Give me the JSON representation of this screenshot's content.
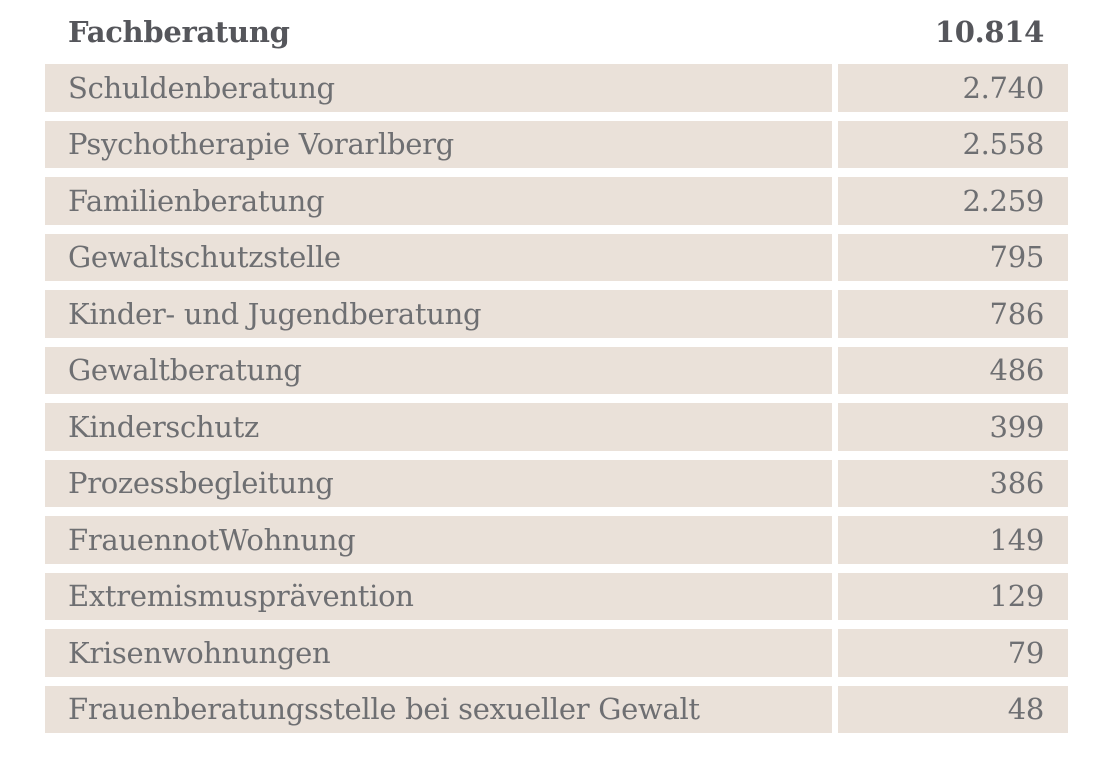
{
  "table": {
    "header": {
      "label": "Fachberatung",
      "value": "10.814"
    },
    "rows": [
      {
        "label": "Schuldenberatung",
        "value": "2.740"
      },
      {
        "label": "Psychotherapie Vorarlberg",
        "value": "2.558"
      },
      {
        "label": "Familienberatung",
        "value": "2.259"
      },
      {
        "label": "Gewaltschutzstelle",
        "value": "795"
      },
      {
        "label": "Kinder- und Jugendberatung",
        "value": "786"
      },
      {
        "label": "Gewaltberatung",
        "value": "486"
      },
      {
        "label": "Kinderschutz",
        "value": "399"
      },
      {
        "label": "Prozessbegleitung",
        "value": "386"
      },
      {
        "label": "FrauennotWohnung",
        "value": "149"
      },
      {
        "label": "Extremismusprävention",
        "value": "129"
      },
      {
        "label": "Krisenwohnungen",
        "value": "79"
      },
      {
        "label": "Frauenberatungsstelle bei sexueller Gewalt",
        "value": "48"
      }
    ],
    "colors": {
      "row_background": "#eae1d9",
      "row_text": "#6e6f72",
      "header_text": "#55565b",
      "page_background": "#ffffff"
    }
  }
}
